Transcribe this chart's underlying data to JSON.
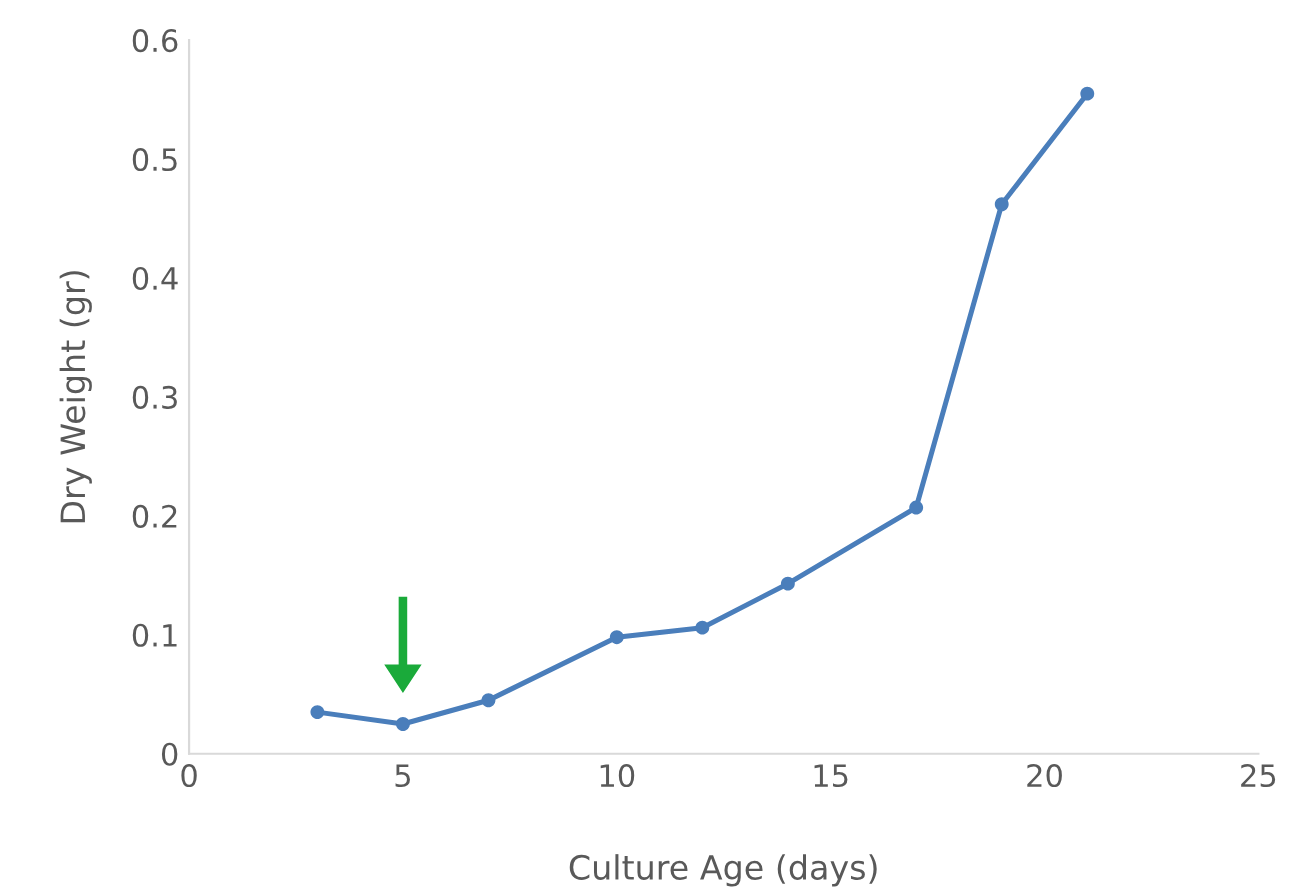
{
  "chart_data": {
    "type": "line",
    "xlabel": "Culture Age (days)",
    "ylabel": "Dry Weight (gr)",
    "series": [
      {
        "color": "#4a7ebb",
        "x": [
          3,
          5,
          7,
          10,
          12,
          14,
          17,
          19,
          21
        ],
        "values": [
          0.035,
          0.025,
          0.045,
          0.098,
          0.106,
          0.143,
          0.207,
          0.462,
          0.555
        ]
      }
    ],
    "xlim": [
      0,
      25
    ],
    "xticks": [
      0,
      5,
      10,
      15,
      20,
      25
    ],
    "ylim": [
      0,
      0.6
    ],
    "yticks": [
      0,
      0.1,
      0.2,
      0.3,
      0.4,
      0.5,
      0.6
    ],
    "marker": "circle",
    "line_style": "solid",
    "grid": false,
    "legend": false
  }
}
